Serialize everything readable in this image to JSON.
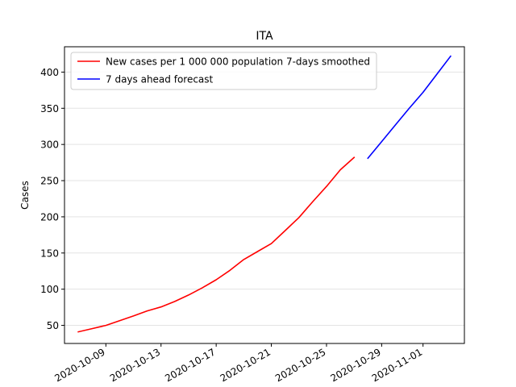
{
  "chart_data": {
    "type": "line",
    "title": "ITA",
    "xlabel": "",
    "ylabel": "Cases",
    "grid": "horizontal",
    "legend_placement": "top-left",
    "xlim": [
      "2020-10-06",
      "2020-11-04"
    ],
    "ylim": [
      25,
      435
    ],
    "yticks": [
      50,
      100,
      150,
      200,
      250,
      300,
      350,
      400
    ],
    "xticks": [
      "2020-10-09",
      "2020-10-13",
      "2020-10-17",
      "2020-10-21",
      "2020-10-25",
      "2020-10-29",
      "2020-11-01"
    ],
    "series": [
      {
        "name": "New cases per 1 000 000 population 7-days smoothed",
        "color": "#ff0000",
        "x": [
          "2020-10-07",
          "2020-10-08",
          "2020-10-09",
          "2020-10-10",
          "2020-10-11",
          "2020-10-12",
          "2020-10-13",
          "2020-10-14",
          "2020-10-15",
          "2020-10-16",
          "2020-10-17",
          "2020-10-18",
          "2020-10-19",
          "2020-10-20",
          "2020-10-21",
          "2020-10-22",
          "2020-10-23",
          "2020-10-24",
          "2020-10-25",
          "2020-10-26",
          "2020-10-27"
        ],
        "y": [
          41,
          45.5,
          50,
          56.5,
          63,
          70,
          75.5,
          83,
          92,
          102,
          113,
          126,
          141,
          152,
          163,
          181,
          199,
          221,
          242,
          265,
          282
        ]
      },
      {
        "name": "7 days ahead forecast",
        "color": "#0000ff",
        "x": [
          "2020-10-28",
          "2020-10-29",
          "2020-10-30",
          "2020-10-31",
          "2020-11-01",
          "2020-11-02",
          "2020-11-03"
        ],
        "y": [
          281,
          304,
          327,
          350,
          372,
          397,
          422
        ]
      }
    ]
  }
}
